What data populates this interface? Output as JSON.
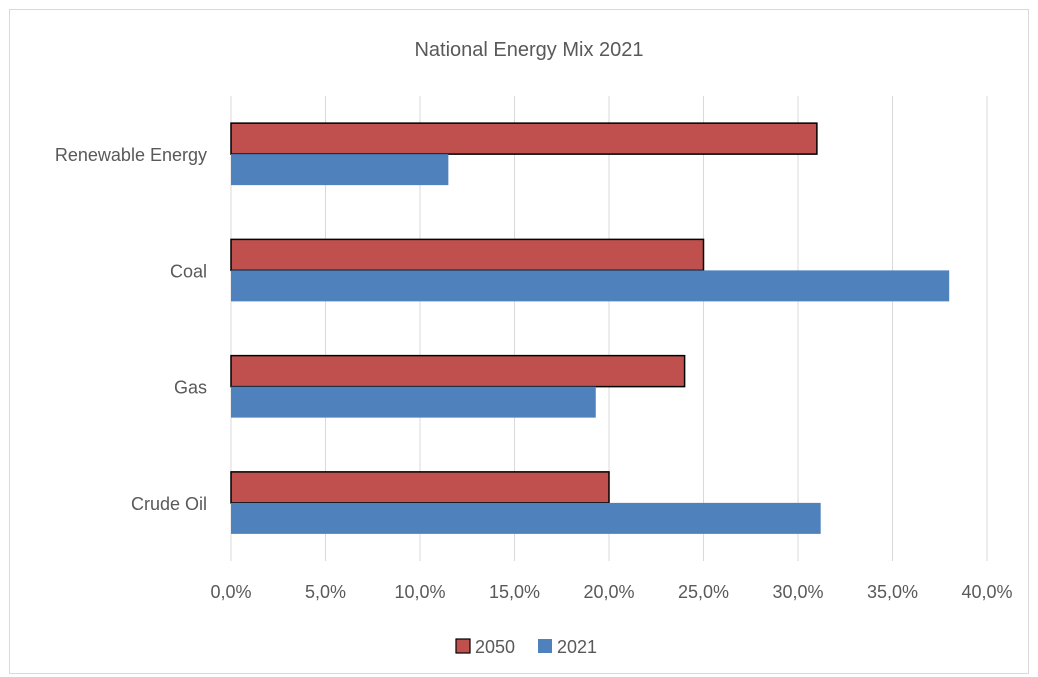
{
  "chart_data": {
    "type": "bar",
    "orientation": "horizontal",
    "title": "National Energy Mix 2021",
    "categories": [
      "Renewable Energy",
      "Coal",
      "Gas",
      "Crude Oil"
    ],
    "series": [
      {
        "name": "2050",
        "values": [
          31.0,
          25.0,
          24.0,
          20.0
        ],
        "color": "#c0504d"
      },
      {
        "name": "2021",
        "values": [
          11.5,
          38.0,
          19.3,
          31.2
        ],
        "color": "#4f81bd"
      }
    ],
    "xticks": [
      "0,0%",
      "5,0%",
      "10,0%",
      "15,0%",
      "20,0%",
      "25,0%",
      "30,0%",
      "35,0%",
      "40,0%"
    ],
    "xlim": [
      0,
      40
    ],
    "grid": true,
    "legend_position": "bottom"
  }
}
